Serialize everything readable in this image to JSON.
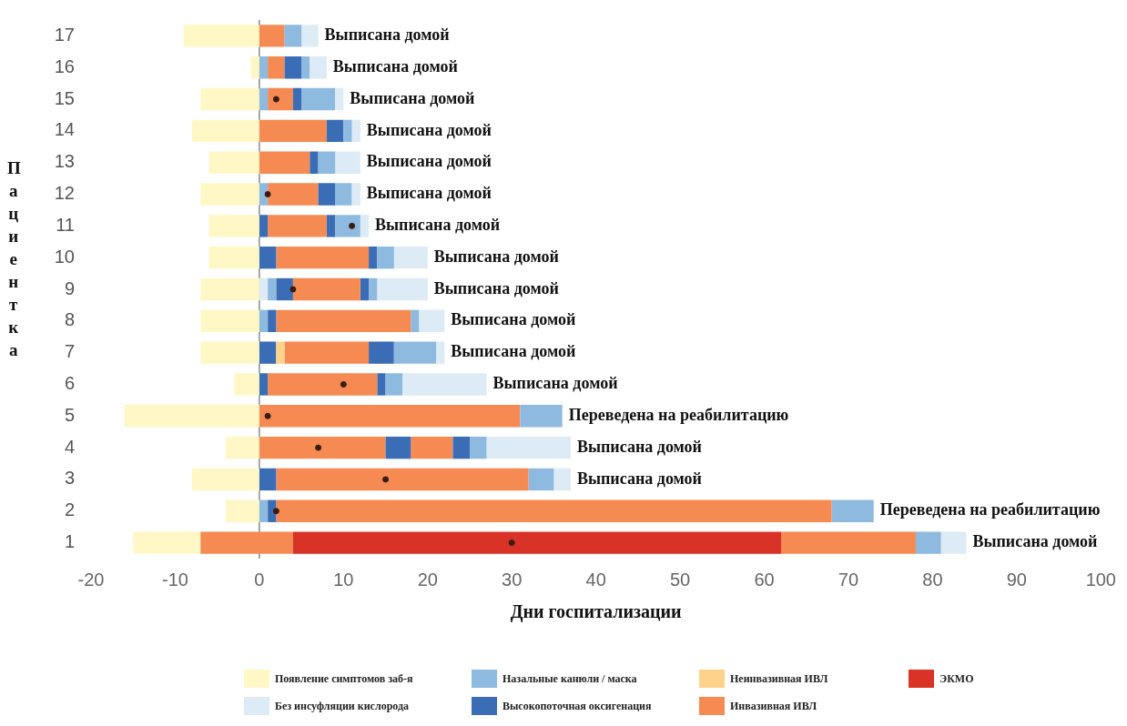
{
  "chart_data": {
    "type": "bar",
    "orientation": "horizontal",
    "xlabel": "Дни госпитализации",
    "ylabel": "Пациентка",
    "categories": [
      "17",
      "16",
      "15",
      "14",
      "13",
      "12",
      "11",
      "10",
      "9",
      "8",
      "7",
      "6",
      "5",
      "4",
      "3",
      "2",
      "1"
    ],
    "xlim": [
      -20,
      100
    ],
    "xticks": [
      -20,
      -10,
      0,
      10,
      20,
      30,
      40,
      50,
      60,
      70,
      80,
      90,
      100
    ],
    "legend": "bottom",
    "series": [
      {
        "name": "Появление симптомов заб-я",
        "color": "#fff8c6",
        "base": [
          -9,
          -1,
          -7,
          -8,
          -6,
          -7,
          -6,
          -6,
          -7,
          -7,
          -7,
          -3,
          -16,
          -4,
          -8,
          -4,
          -15
        ],
        "values": [
          9,
          1,
          7,
          8,
          6,
          7,
          6,
          6,
          7,
          7,
          7,
          3,
          16,
          4,
          8,
          4,
          8
        ]
      },
      {
        "name": "Назальные канюли / маска",
        "color": "#8fbadf",
        "base": [
          3,
          0,
          0,
          10,
          7,
          0,
          9,
          14,
          1,
          0,
          16,
          15,
          31,
          25,
          32,
          0,
          78
        ],
        "values": [
          2,
          1,
          1,
          1,
          2,
          1,
          3,
          2,
          1,
          1,
          5,
          2,
          5,
          2,
          3,
          1,
          3
        ]
      },
      {
        "name": "Неинвазивная ИВЛ",
        "color": "#fdd28a",
        "base": [
          null,
          null,
          null,
          null,
          null,
          null,
          null,
          null,
          null,
          null,
          2,
          null,
          null,
          null,
          null,
          null,
          null
        ],
        "values": [
          null,
          null,
          null,
          null,
          null,
          null,
          null,
          null,
          null,
          null,
          1,
          null,
          null,
          null,
          null,
          null,
          null
        ]
      },
      {
        "name": "ЭКМО",
        "color": "#d93226",
        "base": [
          null,
          null,
          null,
          null,
          null,
          null,
          null,
          null,
          null,
          null,
          null,
          null,
          null,
          null,
          null,
          null,
          4
        ],
        "values": [
          null,
          null,
          null,
          null,
          null,
          null,
          null,
          null,
          null,
          null,
          null,
          null,
          null,
          null,
          null,
          null,
          58
        ]
      },
      {
        "name": "Без инсуфляции кислорода",
        "color": "#dcebf5",
        "base": [
          5,
          6,
          9,
          11,
          9,
          11,
          12,
          16,
          0,
          19,
          21,
          17,
          null,
          27,
          35,
          null,
          81
        ],
        "values": [
          2,
          2,
          1,
          1,
          3,
          1,
          1,
          4,
          1,
          3,
          1,
          10,
          null,
          10,
          2,
          null,
          3
        ]
      },
      {
        "name": "Высокопоточная оксигенация",
        "color": "#3a6db5",
        "base": [
          null,
          3,
          4,
          8,
          6,
          7,
          0,
          0,
          2,
          1,
          0,
          0,
          null,
          15,
          0,
          1,
          null
        ],
        "values": [
          null,
          2,
          1,
          2,
          1,
          2,
          1,
          2,
          2,
          1,
          2,
          1,
          null,
          3,
          2,
          1,
          null
        ]
      },
      {
        "name": "Инвазивная ИВЛ",
        "color": "#f58a53",
        "base": [
          0,
          1,
          1,
          0,
          0,
          1,
          1,
          2,
          4,
          2,
          3,
          1,
          0,
          0,
          2,
          2,
          -7
        ],
        "values": [
          3,
          2,
          3,
          8,
          6,
          6,
          7,
          11,
          8,
          16,
          10,
          13,
          31,
          15,
          30,
          66,
          11
        ]
      },
      {
        "color": "#8fbadf",
        "base": [
          null,
          5,
          5,
          null,
          null,
          9,
          null,
          null,
          13,
          18,
          null,
          null,
          null,
          null,
          null,
          68,
          null
        ],
        "values": [
          null,
          1,
          4,
          null,
          null,
          2,
          null,
          null,
          1,
          1,
          null,
          null,
          null,
          null,
          null,
          5,
          null
        ]
      },
      {
        "color": "#dcebf5",
        "base": [
          null,
          null,
          null,
          null,
          null,
          null,
          null,
          null,
          14,
          null,
          null,
          null,
          null,
          null,
          null,
          null,
          null
        ],
        "values": [
          null,
          null,
          null,
          null,
          null,
          null,
          null,
          null,
          6,
          null,
          null,
          null,
          null,
          null,
          null,
          null,
          null
        ]
      },
      {
        "color": "#3a6db5",
        "base": [
          null,
          null,
          null,
          null,
          null,
          null,
          8,
          13,
          12,
          null,
          13,
          14,
          null,
          23,
          null,
          null,
          null
        ],
        "values": [
          null,
          null,
          null,
          null,
          null,
          null,
          1,
          1,
          1,
          null,
          3,
          1,
          null,
          2,
          null,
          null,
          null
        ]
      },
      {
        "color": "#f58a53",
        "base": [
          null,
          null,
          null,
          null,
          null,
          null,
          null,
          null,
          null,
          null,
          null,
          null,
          null,
          18,
          null,
          null,
          62
        ],
        "values": [
          null,
          null,
          null,
          null,
          null,
          null,
          null,
          null,
          null,
          null,
          null,
          null,
          null,
          5,
          null,
          null,
          16
        ]
      },
      {
        "type": "scatter",
        "color": "#3a1c10",
        "marker": "circle",
        "x": [
          "15",
          "12",
          "11",
          "9",
          "6",
          "5",
          "4",
          "3",
          "2",
          "1"
        ],
        "values": [
          2,
          1,
          11,
          4,
          10,
          1,
          7,
          15,
          2,
          30
        ]
      }
    ],
    "ref_lines": [
      {
        "axis": "x",
        "value": 0,
        "color": "#8a8a8a"
      }
    ],
    "annotations": [
      {
        "text": "Выписана домой",
        "x": 7,
        "y": "17"
      },
      {
        "text": "Выписана домой",
        "x": 8,
        "y": "16"
      },
      {
        "text": "Выписана домой",
        "x": 10,
        "y": "15"
      },
      {
        "text": "Выписана домой",
        "x": 12,
        "y": "14"
      },
      {
        "text": "Выписана домой",
        "x": 12,
        "y": "13"
      },
      {
        "text": "Выписана домой",
        "x": 12,
        "y": "12"
      },
      {
        "text": "Выписана домой",
        "x": 13,
        "y": "11"
      },
      {
        "text": "Выписана домой",
        "x": 20,
        "y": "10"
      },
      {
        "text": "Выписана домой",
        "x": 20,
        "y": "9"
      },
      {
        "text": "Выписана домой",
        "x": 22,
        "y": "8"
      },
      {
        "text": "Выписана домой",
        "x": 22,
        "y": "7"
      },
      {
        "text": "Выписана домой",
        "x": 27,
        "y": "6"
      },
      {
        "text": "Переведена на реабилитацию",
        "x": 36,
        "y": "5"
      },
      {
        "text": "Выписана домой",
        "x": 37,
        "y": "4"
      },
      {
        "text": "Выписана домой",
        "x": 37,
        "y": "3"
      },
      {
        "text": "Переведена на реабилитацию",
        "x": 73,
        "y": "2"
      },
      {
        "text": "Выписана домой",
        "x": 84,
        "y": "1"
      }
    ]
  }
}
